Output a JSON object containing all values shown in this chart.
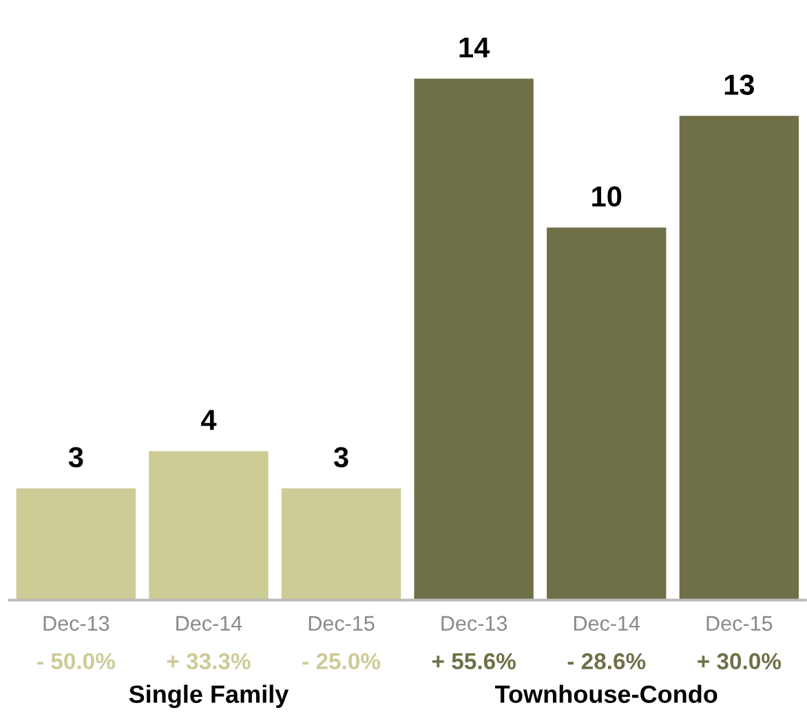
{
  "chart_data": [
    {
      "type": "bar",
      "xlabel": "Single Family",
      "categories": [
        "Dec-13",
        "Dec-14",
        "Dec-15"
      ],
      "values": [
        3,
        4,
        3
      ],
      "color": "#cdcb96",
      "data_labels": true,
      "tick_labels": "x",
      "annotations": [
        "- 50.0%",
        "+ 33.3%",
        "- 25.0%"
      ]
    },
    {
      "type": "bar",
      "xlabel": "Townhouse-Condo",
      "categories": [
        "Dec-13",
        "Dec-14",
        "Dec-15"
      ],
      "values": [
        14,
        10,
        13
      ],
      "color": "#6f6f48",
      "data_labels": true,
      "tick_labels": "x",
      "annotations": [
        "+ 55.6%",
        "- 28.6%",
        "+ 30.0%"
      ]
    }
  ]
}
